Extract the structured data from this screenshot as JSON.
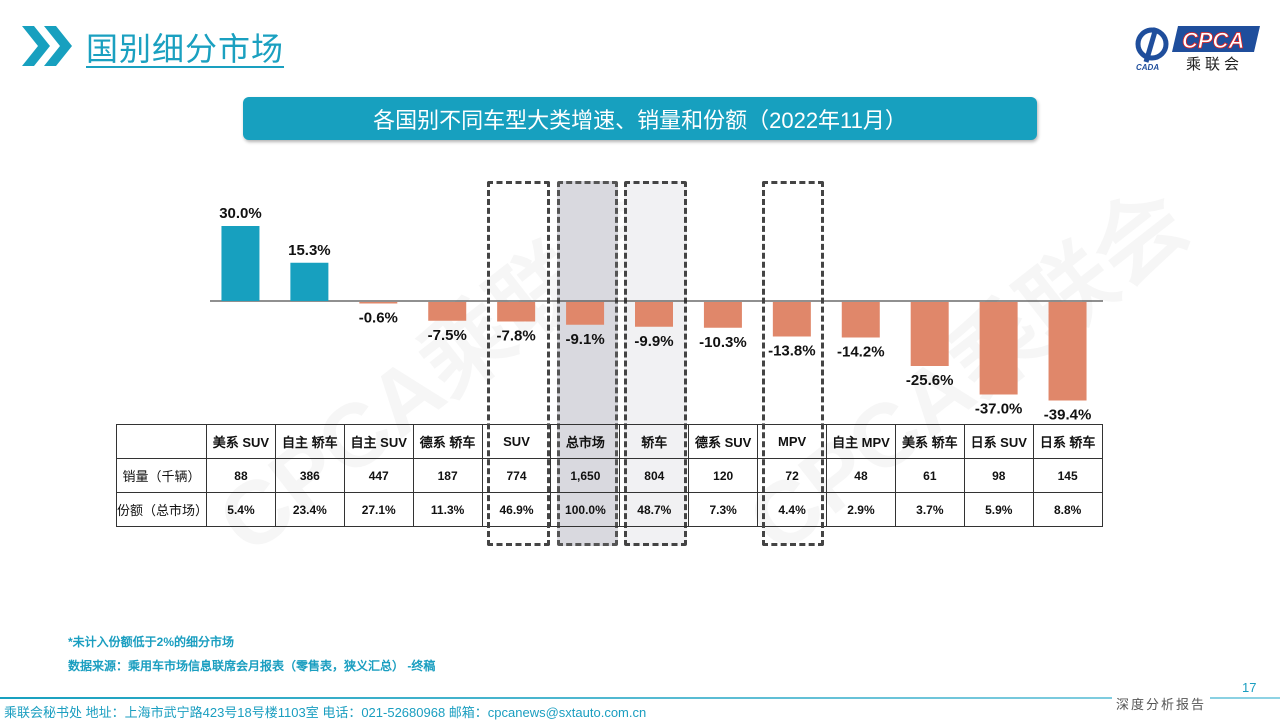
{
  "header": {
    "title": "国别细分市场",
    "logo_text": "CPCA",
    "logo_sub": "乘联会",
    "logo_small": "CADA"
  },
  "banner": {
    "text": "各国别不同车型大类增速、销量和份额（2022年11月）"
  },
  "watermark": "CPCA乘联会",
  "chart_data": {
    "type": "bar",
    "title": "各国别不同车型大类增速、销量和份额（2022年11月）",
    "categories": [
      "美系 SUV",
      "自主 轿车",
      "自主 SUV",
      "德系 轿车",
      "SUV",
      "总市场",
      "轿车",
      "德系 SUV",
      "MPV",
      "自主 MPV",
      "美系 轿车",
      "日系 SUV",
      "日系 轿车"
    ],
    "values": [
      30.0,
      15.3,
      -0.6,
      -7.5,
      -7.8,
      -9.1,
      -9.9,
      -10.3,
      -13.8,
      -14.2,
      -25.6,
      -37.0,
      -39.4
    ],
    "labels": [
      "30.0%",
      "15.3%",
      "-0.6%",
      "-7.5%",
      "-7.8%",
      "-9.1%",
      "-9.9%",
      "-10.3%",
      "-13.8%",
      "-14.2%",
      "-25.6%",
      "-37.0%",
      "-39.4%"
    ],
    "unit": "%",
    "highlighted": [
      "SUV",
      "总市场",
      "轿车",
      "MPV"
    ],
    "colors": {
      "positive": "#17a0bf",
      "negative": "#e0876a"
    },
    "table": {
      "rows": [
        {
          "label": "销量（千辆）",
          "values": [
            "88",
            "386",
            "447",
            "187",
            "774",
            "1,650",
            "804",
            "120",
            "72",
            "48",
            "61",
            "98",
            "145"
          ]
        },
        {
          "label": "份额（总市场）",
          "values": [
            "5.4%",
            "23.4%",
            "27.1%",
            "11.3%",
            "46.9%",
            "100.0%",
            "48.7%",
            "7.3%",
            "4.4%",
            "2.9%",
            "3.7%",
            "5.9%",
            "8.8%"
          ]
        }
      ]
    }
  },
  "notes": [
    "*未计入份额低于2%的细分市场",
    "数据来源：乘用车市场信息联席会月报表（零售表，狭义汇总） -终稿"
  ],
  "footer": {
    "text": "乘联会秘书处   地址：上海市武宁路423号18号楼1103室  电话：021-52680968   邮箱：cpcanews@sxtauto.com.cn",
    "tag": "深度分析报告",
    "page": "17"
  }
}
